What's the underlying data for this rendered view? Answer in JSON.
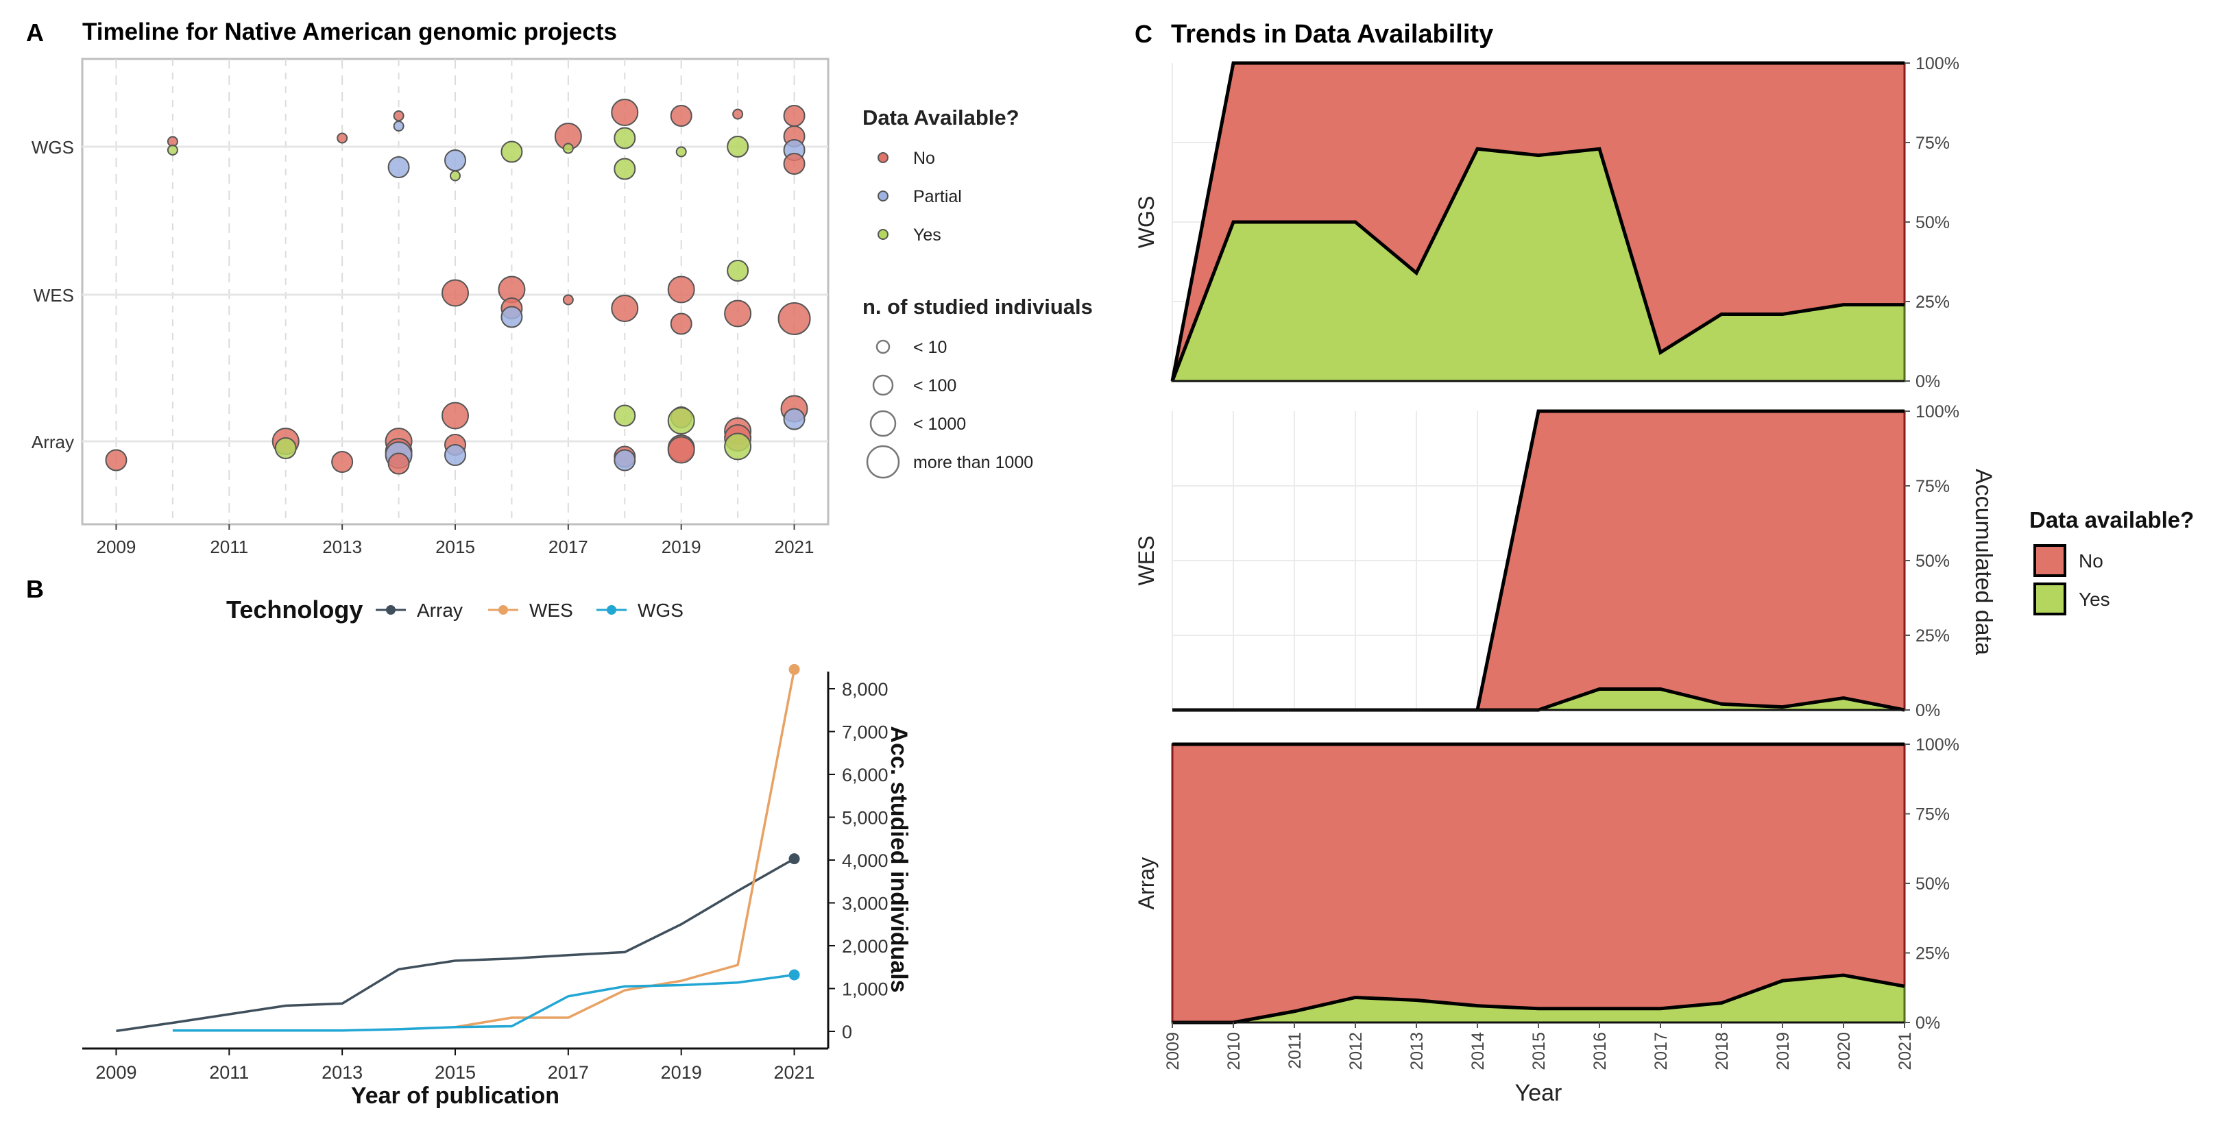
{
  "colors": {
    "no": "#e07468",
    "partial": "#9fb3e2",
    "yes": "#b4d65e",
    "array": "#3f4f5c",
    "wes": "#e8a264",
    "wgs": "#22a6d4",
    "red_line": "#8b1a1a",
    "green_line": "#556b1e"
  },
  "panel_letters": {
    "a": "A",
    "b": "B",
    "c": "C"
  },
  "chart_data": [
    {
      "id": "A",
      "type": "scatter",
      "title": "Timeline for Native American genomic projects",
      "x_ticks": [
        "2009",
        "2011",
        "2013",
        "2015",
        "2017",
        "2019",
        "2021"
      ],
      "xlim": [
        2008.4,
        2021.6
      ],
      "y_categories": [
        "WGS",
        "WES",
        "Array"
      ],
      "legend_color": {
        "title": "Data Available?",
        "entries": [
          {
            "key": "no",
            "label": "No"
          },
          {
            "key": "partial",
            "label": "Partial"
          },
          {
            "key": "yes",
            "label": "Yes"
          }
        ]
      },
      "legend_size": {
        "title": "n. of studied indiviuals",
        "entries": [
          {
            "label": "< 10",
            "size": 1
          },
          {
            "label": "< 100",
            "size": 2
          },
          {
            "label": "< 1000",
            "size": 3
          },
          {
            "label": "more than 1000",
            "size": 4
          }
        ]
      },
      "points": [
        {
          "tech": "WGS",
          "year": 2010,
          "status": "no",
          "size": 1,
          "off": 0.3
        },
        {
          "tech": "WGS",
          "year": 2010,
          "status": "yes",
          "size": 1,
          "off": -0.2
        },
        {
          "tech": "WGS",
          "year": 2013,
          "status": "no",
          "size": 1,
          "off": 0.5
        },
        {
          "tech": "WGS",
          "year": 2014,
          "status": "no",
          "size": 1,
          "off": 1.8
        },
        {
          "tech": "WGS",
          "year": 2014,
          "status": "partial",
          "size": 1,
          "off": 1.2
        },
        {
          "tech": "WGS",
          "year": 2014,
          "status": "partial",
          "size": 3,
          "off": -1.2
        },
        {
          "tech": "WGS",
          "year": 2015,
          "status": "partial",
          "size": 3,
          "off": -0.8
        },
        {
          "tech": "WGS",
          "year": 2015,
          "status": "yes",
          "size": 1,
          "off": -1.7
        },
        {
          "tech": "WGS",
          "year": 2016,
          "status": "yes",
          "size": 3,
          "off": -0.3
        },
        {
          "tech": "WGS",
          "year": 2017,
          "status": "no",
          "size": 4,
          "off": 0.6
        },
        {
          "tech": "WGS",
          "year": 2017,
          "status": "yes",
          "size": 1,
          "off": -0.1
        },
        {
          "tech": "WGS",
          "year": 2018,
          "status": "no",
          "size": 4,
          "off": 2.0
        },
        {
          "tech": "WGS",
          "year": 2018,
          "status": "yes",
          "size": 3,
          "off": 0.5
        },
        {
          "tech": "WGS",
          "year": 2018,
          "status": "yes",
          "size": 3,
          "off": -1.3
        },
        {
          "tech": "WGS",
          "year": 2019,
          "status": "no",
          "size": 3,
          "off": 1.8
        },
        {
          "tech": "WGS",
          "year": 2019,
          "status": "yes",
          "size": 1,
          "off": -0.3
        },
        {
          "tech": "WGS",
          "year": 2020,
          "status": "no",
          "size": 1,
          "off": 1.9
        },
        {
          "tech": "WGS",
          "year": 2020,
          "status": "yes",
          "size": 3,
          "off": 0.0
        },
        {
          "tech": "WGS",
          "year": 2021,
          "status": "no",
          "size": 3,
          "off": 1.8
        },
        {
          "tech": "WGS",
          "year": 2021,
          "status": "no",
          "size": 3,
          "off": 0.6
        },
        {
          "tech": "WGS",
          "year": 2021,
          "status": "partial",
          "size": 3,
          "off": -0.2
        },
        {
          "tech": "WGS",
          "year": 2021,
          "status": "no",
          "size": 3,
          "off": -1.0
        },
        {
          "tech": "WES",
          "year": 2015,
          "status": "no",
          "size": 4,
          "off": 0.1
        },
        {
          "tech": "WES",
          "year": 2016,
          "status": "no",
          "size": 4,
          "off": 0.3
        },
        {
          "tech": "WES",
          "year": 2016,
          "status": "no",
          "size": 3,
          "off": -0.8
        },
        {
          "tech": "WES",
          "year": 2016,
          "status": "partial",
          "size": 3,
          "off": -1.3
        },
        {
          "tech": "WES",
          "year": 2017,
          "status": "no",
          "size": 1,
          "off": -0.3
        },
        {
          "tech": "WES",
          "year": 2018,
          "status": "no",
          "size": 4,
          "off": -0.8
        },
        {
          "tech": "WES",
          "year": 2019,
          "status": "no",
          "size": 4,
          "off": 0.3
        },
        {
          "tech": "WES",
          "year": 2019,
          "status": "no",
          "size": 3,
          "off": -1.7
        },
        {
          "tech": "WES",
          "year": 2020,
          "status": "yes",
          "size": 3,
          "off": 1.4
        },
        {
          "tech": "WES",
          "year": 2020,
          "status": "no",
          "size": 4,
          "off": -1.1
        },
        {
          "tech": "WES",
          "year": 2021,
          "status": "no",
          "size": 5,
          "off": -1.4
        },
        {
          "tech": "Array",
          "year": 2009,
          "status": "no",
          "size": 3,
          "off": -1.1
        },
        {
          "tech": "Array",
          "year": 2012,
          "status": "no",
          "size": 4,
          "off": 0.0
        },
        {
          "tech": "Array",
          "year": 2012,
          "status": "yes",
          "size": 3,
          "off": -0.4
        },
        {
          "tech": "Array",
          "year": 2013,
          "status": "no",
          "size": 3,
          "off": -1.2
        },
        {
          "tech": "Array",
          "year": 2014,
          "status": "no",
          "size": 4,
          "off": 0.0
        },
        {
          "tech": "Array",
          "year": 2014,
          "status": "no",
          "size": 4,
          "off": -0.6
        },
        {
          "tech": "Array",
          "year": 2014,
          "status": "partial",
          "size": 4,
          "off": -0.8
        },
        {
          "tech": "Array",
          "year": 2014,
          "status": "no",
          "size": 3,
          "off": -1.3
        },
        {
          "tech": "Array",
          "year": 2015,
          "status": "no",
          "size": 4,
          "off": 1.5
        },
        {
          "tech": "Array",
          "year": 2015,
          "status": "no",
          "size": 3,
          "off": -0.2
        },
        {
          "tech": "Array",
          "year": 2015,
          "status": "partial",
          "size": 3,
          "off": -0.8
        },
        {
          "tech": "Array",
          "year": 2018,
          "status": "yes",
          "size": 3,
          "off": 1.5
        },
        {
          "tech": "Array",
          "year": 2018,
          "status": "no",
          "size": 3,
          "off": -0.9
        },
        {
          "tech": "Array",
          "year": 2018,
          "status": "partial",
          "size": 3,
          "off": -1.1
        },
        {
          "tech": "Array",
          "year": 2019,
          "status": "no",
          "size": 3,
          "off": 1.4
        },
        {
          "tech": "Array",
          "year": 2019,
          "status": "yes",
          "size": 4,
          "off": 1.2
        },
        {
          "tech": "Array",
          "year": 2019,
          "status": "no",
          "size": 4,
          "off": -0.4
        },
        {
          "tech": "Array",
          "year": 2019,
          "status": "no",
          "size": 4,
          "off": -0.5
        },
        {
          "tech": "Array",
          "year": 2020,
          "status": "no",
          "size": 4,
          "off": 0.6
        },
        {
          "tech": "Array",
          "year": 2020,
          "status": "no",
          "size": 4,
          "off": 0.2
        },
        {
          "tech": "Array",
          "year": 2020,
          "status": "yes",
          "size": 4,
          "off": -0.3
        },
        {
          "tech": "Array",
          "year": 2021,
          "status": "no",
          "size": 4,
          "off": 1.9
        },
        {
          "tech": "Array",
          "year": 2021,
          "status": "partial",
          "size": 3,
          "off": 1.3
        }
      ]
    },
    {
      "id": "B",
      "type": "line",
      "legend_title": "Technology",
      "xlabel": "Year of publication",
      "ylabel": "Acc. studied individuals",
      "x_ticks": [
        "2009",
        "2011",
        "2013",
        "2015",
        "2017",
        "2019",
        "2021"
      ],
      "xlim": [
        2008.4,
        2021.6
      ],
      "ylim": [
        -400,
        8400
      ],
      "y_ticks": [
        "0",
        "1,000",
        "2,000",
        "3,000",
        "4,000",
        "5,000",
        "6,000",
        "7,000",
        "8,000"
      ],
      "series": [
        {
          "key": "array",
          "name": "Array",
          "x": [
            2009,
            2010,
            2011,
            2012,
            2013,
            2014,
            2015,
            2016,
            2017,
            2018,
            2019,
            2020,
            2021
          ],
          "y": [
            10,
            200,
            400,
            600,
            650,
            1450,
            1650,
            1700,
            1780,
            1850,
            2500,
            3280,
            4030
          ]
        },
        {
          "key": "wes",
          "name": "WES",
          "x": [
            2015,
            2016,
            2017,
            2018,
            2019,
            2020,
            2021
          ],
          "y": [
            100,
            320,
            320,
            960,
            1180,
            1550,
            8450
          ]
        },
        {
          "key": "wgs",
          "name": "WGS",
          "x": [
            2010,
            2011,
            2012,
            2013,
            2014,
            2015,
            2016,
            2017,
            2018,
            2019,
            2020,
            2021
          ],
          "y": [
            20,
            20,
            20,
            20,
            50,
            100,
            120,
            820,
            1050,
            1080,
            1140,
            1320
          ]
        }
      ]
    },
    {
      "id": "C",
      "type": "area",
      "title": "Trends in Data Availability",
      "xlabel": "Year",
      "ylabel_right": "Accumulated data",
      "x": [
        2009,
        2010,
        2011,
        2012,
        2013,
        2014,
        2015,
        2016,
        2017,
        2018,
        2019,
        2020,
        2021
      ],
      "x_ticks": [
        "2009",
        "2010",
        "2011",
        "2012",
        "2013",
        "2014",
        "2015",
        "2016",
        "2017",
        "2018",
        "2019",
        "2020",
        "2021"
      ],
      "y_ticks": [
        "0%",
        "25%",
        "50%",
        "75%",
        "100%"
      ],
      "legend": {
        "title": "Data available?",
        "entries": [
          {
            "key": "no",
            "label": "No"
          },
          {
            "key": "yes",
            "label": "Yes"
          }
        ]
      },
      "facets": [
        {
          "name": "WGS",
          "total": [
            0,
            1,
            1,
            1,
            1,
            1,
            1,
            1,
            1,
            1,
            1,
            1,
            1
          ],
          "yes": [
            0,
            0.5,
            0.5,
            0.5,
            0.34,
            0.73,
            0.71,
            0.73,
            0.09,
            0.21,
            0.21,
            0.24,
            0.24
          ]
        },
        {
          "name": "WES",
          "total": [
            0,
            0,
            0,
            0,
            0,
            0,
            1,
            1,
            1,
            1,
            1,
            1,
            1
          ],
          "yes": [
            0,
            0,
            0,
            0,
            0,
            0,
            0,
            0.07,
            0.07,
            0.02,
            0.01,
            0.04,
            0.0
          ]
        },
        {
          "name": "Array",
          "total": [
            1,
            1,
            1,
            1,
            1,
            1,
            1,
            1,
            1,
            1,
            1,
            1,
            1
          ],
          "yes": [
            0,
            0,
            0.04,
            0.09,
            0.08,
            0.06,
            0.05,
            0.05,
            0.05,
            0.07,
            0.15,
            0.17,
            0.13
          ]
        }
      ]
    }
  ]
}
